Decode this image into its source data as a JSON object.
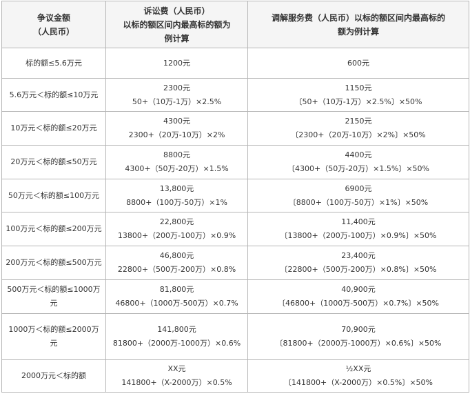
{
  "headers": {
    "col1": [
      "争议金额",
      "（人民币）"
    ],
    "col2": [
      "诉讼费（人民币）",
      "以标的额区间内最高标的额为",
      "例计算"
    ],
    "col3": [
      "调解服务费（人民币）以标的额区间内最高标的",
      "额为例计算"
    ]
  },
  "rows": [
    {
      "range": "标的额≤5.6万元",
      "litigation": [
        "1200元"
      ],
      "mediation": [
        "600元"
      ]
    },
    {
      "range": "5.6万元＜标的额≤10万元",
      "litigation": [
        "2300元",
        "50+（10万-1万）×2.5%"
      ],
      "mediation": [
        "1150元",
        "〔50+（10万-1万）×2.5%〕×50%"
      ]
    },
    {
      "range": "10万元＜标的额≤20万元",
      "litigation": [
        "4300元",
        "2300+（20万-10万）×2%"
      ],
      "mediation": [
        "2150元",
        "〔2300+（20万-10万）×2%〕×50%"
      ]
    },
    {
      "range": "20万元＜标的额≤50万元",
      "litigation": [
        "8800元",
        "4300+（50万-20万）×1.5%"
      ],
      "mediation": [
        "4400元",
        "〔4300+（50万-20万）×1.5%〕×50%"
      ]
    },
    {
      "range": "50万元＜标的额≤100万元",
      "litigation": [
        "13,800元",
        "8800+（100万-50万）×1%"
      ],
      "mediation": [
        "6900元",
        "〔8800+（100万-50万）×1%〕×50%"
      ]
    },
    {
      "range": "100万元＜标的额≤200万元",
      "litigation": [
        "22,800元",
        "13800+（200万-100万）×0.9%"
      ],
      "mediation": [
        "11,400元",
        "〔13800+（200万-100万）×0.9%〕×50%"
      ]
    },
    {
      "range": "200万元＜标的额≤500万元",
      "litigation": [
        "46,800元",
        "22800+（500万-200万）×0.8%"
      ],
      "mediation": [
        "23,400元",
        "〔22800+（500万-200万）×0.8%〕×50%"
      ]
    },
    {
      "range": "500万元＜标的额≤1000万元",
      "litigation": [
        "81,800元",
        "46800+（1000万-500万）×0.7%"
      ],
      "mediation": [
        "40,900元",
        "〔46800+（1000万-500万）×0.7%〕×50%"
      ]
    },
    {
      "range": "1000万＜标的额≤2000万元",
      "litigation": [
        "141,800元",
        "81800+（2000万-1000万）×0.6%"
      ],
      "mediation": [
        "70,900元",
        "〔81800+（2000万-1000万）×0.6%〕×50%"
      ]
    },
    {
      "range": "2000万元＜标的额",
      "litigation": [
        "XX元",
        "141800+（X-2000万）×0.5%"
      ],
      "mediation": [
        "½XX元",
        "〔141800+（X-2000万）×0.5%〕×50%"
      ]
    }
  ]
}
